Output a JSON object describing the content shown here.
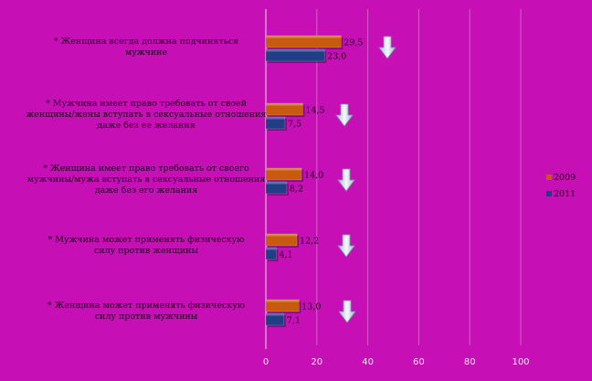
{
  "chart_data": {
    "type": "bar",
    "orientation": "horizontal",
    "categories": [
      [
        "* Женщина всегда должна подчиняться",
        "мужчине"
      ],
      [
        "* Мужчина имеет право требовать от своей",
        "женщины/жены вступать в сексуальные отношения",
        "даже без ее желания"
      ],
      [
        "* Женщина имеет право требовать от своего",
        "мужчины/мужа вступать в сексуальные отношения",
        "даже без его желания"
      ],
      [
        "* Мужчина может применять физическую",
        "силу против женщины"
      ],
      [
        "* Женщина может применять физическую",
        "силу против мужчины"
      ]
    ],
    "series": [
      {
        "name": "2009",
        "color": "#c85a0f",
        "values": [
          29.5,
          14.5,
          14.0,
          12.2,
          13.0
        ]
      },
      {
        "name": "2011",
        "color": "#1f3e86",
        "values": [
          23.0,
          7.5,
          8.2,
          4.1,
          7.1
        ]
      }
    ],
    "value_labels": [
      [
        "29,5",
        "14,5",
        "14,0",
        "12,2",
        "13,0"
      ],
      [
        "23,0",
        "7,5",
        "8,2",
        "4,1",
        "7,1"
      ]
    ],
    "xlim": [
      0,
      100
    ],
    "x_ticks": [
      "0",
      "20",
      "40",
      "60",
      "80",
      "100"
    ],
    "grid": "vertical",
    "legend": "right",
    "trend_marker": "down-arrow-icon",
    "colors": {
      "background": "#c610b6",
      "grid": "#d85ccf",
      "arrow": "#dfe9f2"
    }
  }
}
